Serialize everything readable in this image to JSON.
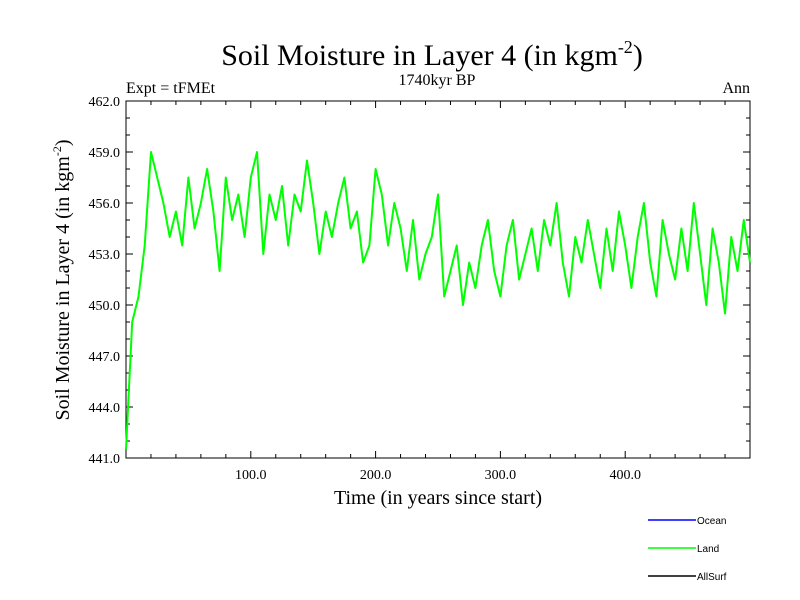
{
  "chart_data": {
    "type": "line",
    "title": "Soil Moisture in Layer 4 (in kgm",
    "title_sup": "-2",
    "title_end": ")",
    "subtitle_left": "Expt = tFMEt",
    "subtitle_center": "1740kyr BP",
    "subtitle_right": "Ann",
    "xlabel": "Time (in years since start)",
    "ylabel": "Soil Moisture in Layer 4 (in kgm",
    "ylabel_sup": "-2",
    "ylabel_end": ")",
    "xlim": [
      0,
      500
    ],
    "ylim": [
      441.0,
      462.0
    ],
    "x_ticks": [
      100,
      200,
      300,
      400
    ],
    "x_tick_labels": [
      "100.0",
      "200.0",
      "300.0",
      "400.0"
    ],
    "y_ticks": [
      441,
      444,
      447,
      450,
      453,
      456,
      459,
      462
    ],
    "y_tick_labels": [
      "441.0",
      "444.0",
      "447.0",
      "450.0",
      "453.0",
      "456.0",
      "459.0",
      "462.0"
    ],
    "legend_position": "bottom-right",
    "legend": [
      {
        "name": "Ocean",
        "color": "#0000ff"
      },
      {
        "name": "Land",
        "color": "#00ff00"
      },
      {
        "name": "AllSurf",
        "color": "#000000"
      }
    ],
    "series": [
      {
        "name": "Land",
        "color": "#00ff00",
        "x_start": 0,
        "x_step": 5,
        "values": [
          441.5,
          449.0,
          450.5,
          453.5,
          459.0,
          457.5,
          456.0,
          454.0,
          455.5,
          453.5,
          457.5,
          454.5,
          456.0,
          458.0,
          455.5,
          452.0,
          457.5,
          455.0,
          456.5,
          454.0,
          457.5,
          459.0,
          453.0,
          456.5,
          455.0,
          457.0,
          453.5,
          456.5,
          455.5,
          458.5,
          456.0,
          453.0,
          455.5,
          454.0,
          456.0,
          457.5,
          454.5,
          455.5,
          452.5,
          453.5,
          458.0,
          456.5,
          453.5,
          456.0,
          454.5,
          452.0,
          455.0,
          451.5,
          453.0,
          454.0,
          456.5,
          450.5,
          452.0,
          453.5,
          450.0,
          452.5,
          451.0,
          453.5,
          455.0,
          452.0,
          450.5,
          453.5,
          455.0,
          451.5,
          453.0,
          454.5,
          452.0,
          455.0,
          453.5,
          456.0,
          452.5,
          450.5,
          454.0,
          452.5,
          455.0,
          453.0,
          451.0,
          454.5,
          452.0,
          455.5,
          453.5,
          451.0,
          454.0,
          456.0,
          452.5,
          450.5,
          455.0,
          453.0,
          451.5,
          454.5,
          452.0,
          456.0,
          453.0,
          450.0,
          454.5,
          452.5,
          449.5,
          454.0,
          452.0,
          455.0,
          452.5
        ]
      }
    ]
  }
}
